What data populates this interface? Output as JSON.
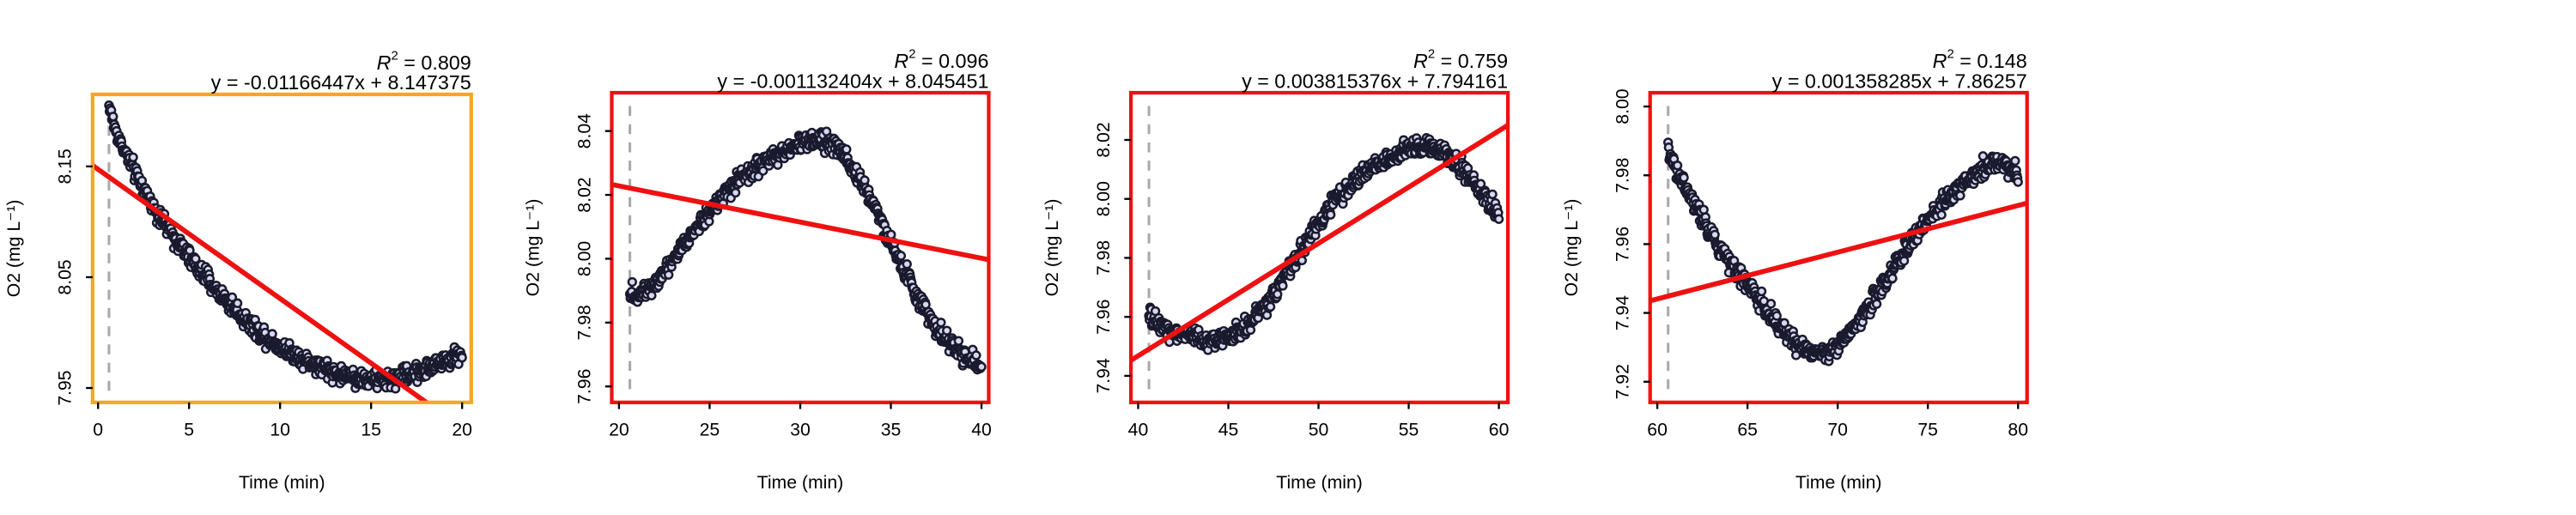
{
  "chart_data": [
    {
      "type": "scatter",
      "xlabel": "Time (min)",
      "ylabel": "O2 (mg L⁻¹)",
      "xlim": [
        -0.3,
        20.5
      ],
      "ylim": [
        7.937,
        8.215
      ],
      "xticks": [
        0,
        5,
        10,
        15,
        20
      ],
      "yticks": [
        7.95,
        8.05,
        8.15
      ],
      "tick_labels_x": [
        "0",
        "5",
        "10",
        "15",
        "20"
      ],
      "tick_labels_y": [
        "7.95",
        "8.05",
        "8.15"
      ],
      "r2_label": "R",
      "r2_exp": "2",
      "r2_value": " = 0.809",
      "equation": "y = -0.01166447x + 8.147375",
      "fit": {
        "slope": -0.01166447,
        "intercept": 8.147375
      },
      "vline_x": 0.6,
      "frame_color": "#f5a623",
      "fit_color": "#ee1111",
      "point_color": "#1a1a2e",
      "series": {
        "x": [
          0.6,
          1,
          2,
          3,
          4,
          5,
          6,
          7,
          8,
          9,
          10,
          11,
          12,
          13,
          14,
          15,
          16,
          17,
          18,
          19,
          20
        ],
        "y": [
          8.205,
          8.18,
          8.145,
          8.115,
          8.09,
          8.068,
          8.048,
          8.03,
          8.013,
          7.999,
          7.988,
          7.978,
          7.97,
          7.964,
          7.96,
          7.957,
          7.958,
          7.962,
          7.967,
          7.974,
          7.98
        ]
      }
    },
    {
      "type": "scatter",
      "xlabel": "Time (min)",
      "ylabel": "O2 (mg L⁻¹)",
      "xlim": [
        19.6,
        40.4
      ],
      "ylim": [
        7.955,
        8.052
      ],
      "xticks": [
        20,
        25,
        30,
        35,
        40
      ],
      "yticks": [
        7.96,
        7.98,
        8.0,
        8.02,
        8.04
      ],
      "tick_labels_x": [
        "20",
        "25",
        "30",
        "35",
        "40"
      ],
      "tick_labels_y": [
        "7.96",
        "7.98",
        "8.00",
        "8.02",
        "8.04"
      ],
      "r2_label": "R",
      "r2_exp": "2",
      "r2_value": " = 0.096",
      "equation": "y = -0.001132404x + 8.045451",
      "fit": {
        "slope": -0.001132404,
        "intercept": 8.045451
      },
      "vline_x": 20.6,
      "frame_color": "#ee1111",
      "fit_color": "#ee1111",
      "point_color": "#1a1a2e",
      "series": {
        "x": [
          20.6,
          21,
          22,
          23,
          24,
          25,
          26,
          27,
          28,
          29,
          30,
          31,
          32,
          33,
          34,
          35,
          36,
          37,
          38,
          39,
          40
        ],
        "y": [
          7.99,
          7.988,
          7.993,
          8.0,
          8.008,
          8.015,
          8.021,
          8.026,
          8.03,
          8.033,
          8.036,
          8.038,
          8.035,
          8.028,
          8.018,
          8.005,
          7.993,
          7.983,
          7.975,
          7.97,
          7.965
        ]
      }
    },
    {
      "type": "scatter",
      "xlabel": "Time (min)",
      "ylabel": "O2 (mg L⁻¹)",
      "xlim": [
        39.6,
        60.5
      ],
      "ylim": [
        7.931,
        8.036
      ],
      "xticks": [
        40,
        45,
        50,
        55,
        60
      ],
      "yticks": [
        7.94,
        7.96,
        7.98,
        8.0,
        8.02
      ],
      "tick_labels_x": [
        "40",
        "45",
        "50",
        "55",
        "60"
      ],
      "tick_labels_y": [
        "7.94",
        "7.96",
        "7.98",
        "8.00",
        "8.02"
      ],
      "r2_label": "R",
      "r2_exp": "2",
      "r2_value": " = 0.759",
      "equation": "y = 0.003815376x + 7.794161",
      "fit": {
        "slope": 0.003815376,
        "intercept": 7.794161
      },
      "vline_x": 40.6,
      "frame_color": "#ee1111",
      "fit_color": "#ee1111",
      "point_color": "#1a1a2e",
      "series": {
        "x": [
          40.6,
          41,
          42,
          43,
          44,
          45,
          46,
          47,
          48,
          49,
          50,
          51,
          52,
          53,
          54,
          55,
          56,
          57,
          58,
          59,
          60
        ],
        "y": [
          7.96,
          7.958,
          7.955,
          7.953,
          7.952,
          7.953,
          7.957,
          7.963,
          7.972,
          7.982,
          7.992,
          8.0,
          8.006,
          8.011,
          8.014,
          8.017,
          8.018,
          8.016,
          8.01,
          8.002,
          7.995
        ]
      }
    },
    {
      "type": "scatter",
      "xlabel": "Time (min)",
      "ylabel": "O2 (mg L⁻¹)",
      "xlim": [
        59.6,
        80.5
      ],
      "ylim": [
        7.914,
        8.004
      ],
      "xticks": [
        60,
        65,
        70,
        75,
        80
      ],
      "yticks": [
        7.92,
        7.94,
        7.96,
        7.98,
        8.0
      ],
      "tick_labels_x": [
        "60",
        "65",
        "70",
        "75",
        "80"
      ],
      "tick_labels_y": [
        "7.92",
        "7.94",
        "7.96",
        "7.98",
        "8.00"
      ],
      "r2_label": "R",
      "r2_exp": "2",
      "r2_value": " = 0.148",
      "equation": "y = 0.001358285x + 7.86257",
      "fit": {
        "slope": 0.001358285,
        "intercept": 7.86257
      },
      "vline_x": 60.6,
      "frame_color": "#ee1111",
      "fit_color": "#ee1111",
      "point_color": "#1a1a2e",
      "series": {
        "x": [
          60.6,
          61,
          62,
          63,
          64,
          65,
          66,
          67,
          68,
          69,
          70,
          71,
          72,
          73,
          74,
          75,
          76,
          77,
          78,
          79,
          80
        ],
        "y": [
          7.988,
          7.982,
          7.972,
          7.963,
          7.955,
          7.948,
          7.941,
          7.935,
          7.93,
          7.928,
          7.93,
          7.936,
          7.944,
          7.952,
          7.96,
          7.967,
          7.973,
          7.978,
          7.982,
          7.984,
          7.98
        ]
      }
    }
  ]
}
